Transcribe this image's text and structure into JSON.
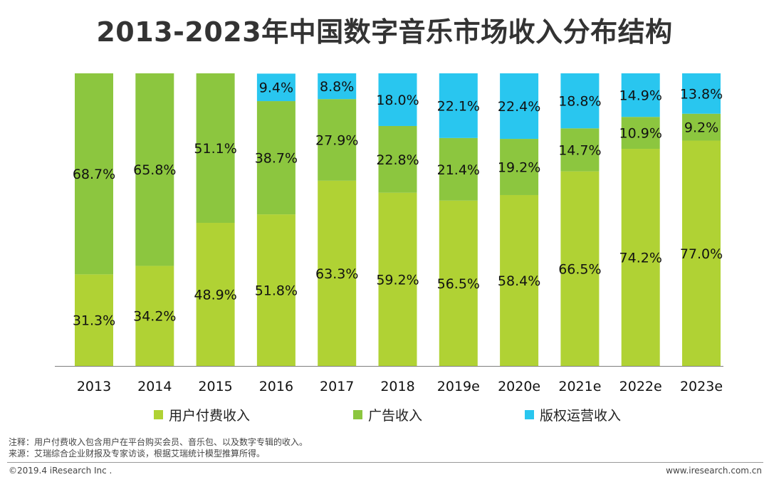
{
  "page": {
    "title": "2013-2023年中国数字音乐市场收入分布结构",
    "note": "注释：用户付费收入包含用户在平台购买会员、音乐包、以及数字专辑的收入。",
    "source": "来源：艾瑞综合企业财报及专家访谈，根据艾瑞统计模型推算所得。",
    "copyright": "©2019.4 iResearch Inc .",
    "website": "www.iresearch.com.cn"
  },
  "chart_data": {
    "type": "bar",
    "stacked": true,
    "title": "2013-2023年中国数字音乐市场收入分布结构",
    "categories": [
      "2013",
      "2014",
      "2015",
      "2016",
      "2017",
      "2018",
      "2019e",
      "2020e",
      "2021e",
      "2022e",
      "2023e"
    ],
    "ylim": [
      0,
      100
    ],
    "unit": "%",
    "legend_position": "bottom",
    "series": [
      {
        "name": "用户付费收入",
        "color": "#b0d234",
        "values": [
          31.3,
          34.2,
          48.9,
          51.8,
          63.3,
          59.2,
          56.5,
          58.4,
          66.5,
          74.2,
          77.0
        ]
      },
      {
        "name": "广告收入",
        "color": "#8cc63f",
        "values": [
          68.7,
          65.8,
          51.1,
          38.7,
          27.9,
          22.8,
          21.4,
          19.2,
          14.7,
          10.9,
          9.2
        ]
      },
      {
        "name": "版权运营收入",
        "color": "#29c6ef",
        "values": [
          0,
          0,
          0,
          9.4,
          8.8,
          18.0,
          22.1,
          22.4,
          18.8,
          14.9,
          13.8
        ]
      }
    ]
  }
}
